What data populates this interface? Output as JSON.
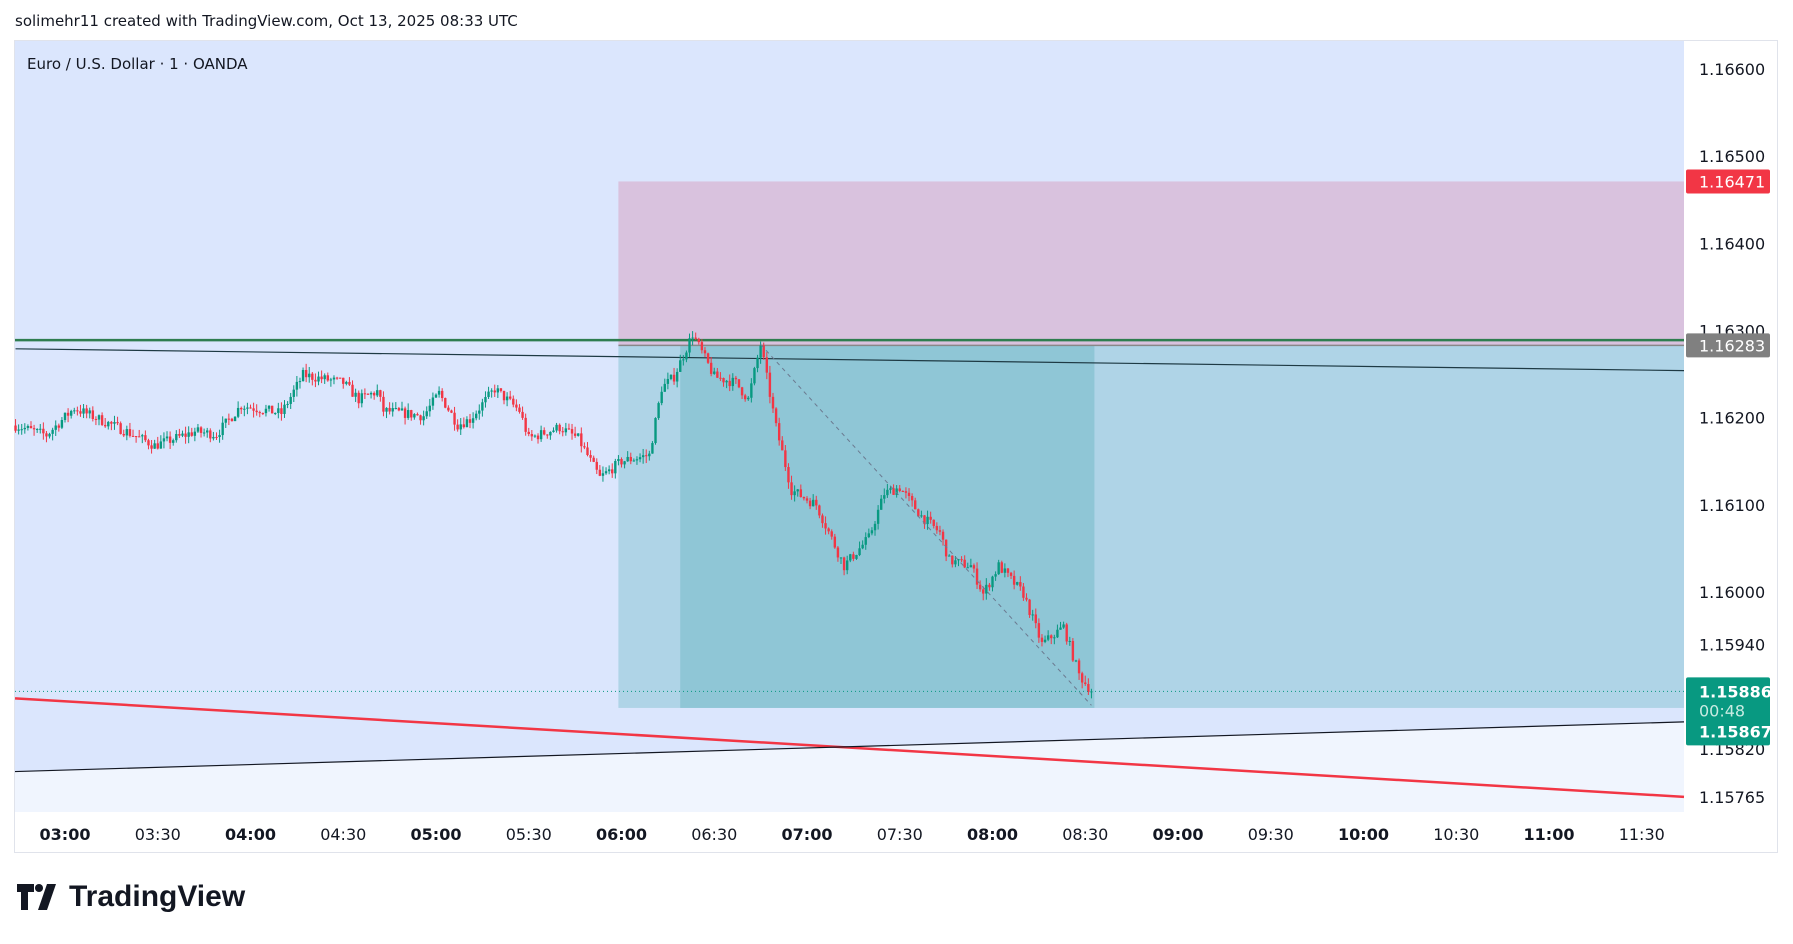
{
  "header": {
    "attribution": "solimehr11 created with TradingView.com, Oct 13, 2025 08:33 UTC"
  },
  "symbol_title": "Euro / U.S. Dollar · 1 · OANDA",
  "logo_text": "TradingView",
  "colors": {
    "up": "#089981",
    "down": "#f23645",
    "background": "#dbe6fd",
    "stop_zone": "#d9c2de",
    "target_zone": "#afd4e7",
    "target_zone_active": "#8fc6d6"
  },
  "chart_data": {
    "type": "candlestick",
    "interval": "1 minute",
    "ylim": [
      1.1574,
      1.1663
    ],
    "xlim": [
      "02:44",
      "11:44"
    ],
    "y_ticks": [
      "1.16600",
      "1.16500",
      "1.16400",
      "1.16300",
      "1.16200",
      "1.16100",
      "1.16000",
      "1.15940",
      "1.15820",
      "1.15765"
    ],
    "x_ticks": [
      "03:00",
      "03:30",
      "04:00",
      "04:30",
      "05:00",
      "05:30",
      "06:00",
      "06:30",
      "07:00",
      "07:30",
      "08:00",
      "08:30",
      "09:00",
      "09:30",
      "10:00",
      "10:30",
      "11:00",
      "11:30"
    ],
    "price_path": [
      [
        "02:44",
        1.16191
      ],
      [
        "02:54",
        1.1618
      ],
      [
        "03:03",
        1.16211
      ],
      [
        "03:20",
        1.16184
      ],
      [
        "03:29",
        1.16168
      ],
      [
        "03:42",
        1.16184
      ],
      [
        "03:49",
        1.16181
      ],
      [
        "03:57",
        1.16214
      ],
      [
        "04:10",
        1.16205
      ],
      [
        "04:17",
        1.16249
      ],
      [
        "04:30",
        1.1624
      ],
      [
        "04:35",
        1.16221
      ],
      [
        "04:41",
        1.1623
      ],
      [
        "04:43",
        1.16208
      ],
      [
        "04:56",
        1.16202
      ],
      [
        "05:01",
        1.16228
      ],
      [
        "05:07",
        1.16192
      ],
      [
        "05:11",
        1.16198
      ],
      [
        "05:19",
        1.16233
      ],
      [
        "05:27",
        1.16208
      ],
      [
        "05:30",
        1.16176
      ],
      [
        "05:40",
        1.16189
      ],
      [
        "05:46",
        1.16176
      ],
      [
        "05:53",
        1.16131
      ],
      [
        "06:00",
        1.1615
      ],
      [
        "06:09",
        1.16157
      ],
      [
        "06:13",
        1.16234
      ],
      [
        "06:17",
        1.16247
      ],
      [
        "06:23",
        1.16296
      ],
      [
        "06:30",
        1.16247
      ],
      [
        "06:37",
        1.1624
      ],
      [
        "06:41",
        1.16221
      ],
      [
        "06:45",
        1.16284
      ],
      [
        "06:50",
        1.16189
      ],
      [
        "06:55",
        1.16117
      ],
      [
        "07:03",
        1.161
      ],
      [
        "07:12",
        1.1603
      ],
      [
        "07:20",
        1.16062
      ],
      [
        "07:25",
        1.16113
      ],
      [
        "07:30",
        1.1612
      ],
      [
        "07:37",
        1.16087
      ],
      [
        "07:43",
        1.16068
      ],
      [
        "07:46",
        1.16036
      ],
      [
        "07:53",
        1.1603
      ],
      [
        "07:57",
        1.15998
      ],
      [
        "08:02",
        1.1603
      ],
      [
        "08:10",
        1.15998
      ],
      [
        "08:16",
        1.1594
      ],
      [
        "08:23",
        1.1596
      ],
      [
        "08:28",
        1.15905
      ],
      [
        "08:32",
        1.15886
      ]
    ],
    "last_price": "1.15886",
    "countdown": "00:48",
    "price_labels": {
      "stop": "1.16471",
      "entry": "1.16283",
      "target": "1.15867"
    },
    "short_position": {
      "start": "05:59",
      "active_start": "06:19",
      "active_end": "08:32",
      "entry": 1.16283,
      "stop": 1.16471,
      "target": 1.15867
    },
    "drawings": {
      "green_level": {
        "price": 1.16289,
        "color": "#2e7d4f"
      },
      "dark_trendline": [
        [
          "02:44",
          1.16279
        ],
        [
          "11:44",
          1.16254
        ]
      ],
      "red_trendline": [
        [
          "02:44",
          1.15878
        ],
        [
          "11:44",
          1.15765
        ]
      ],
      "black_trendline": [
        [
          "02:44",
          1.15794
        ],
        [
          "11:44",
          1.15851
        ]
      ],
      "dashed_path": [
        [
          "06:45",
          1.16284
        ],
        [
          "08:32",
          1.1587
        ]
      ]
    }
  }
}
